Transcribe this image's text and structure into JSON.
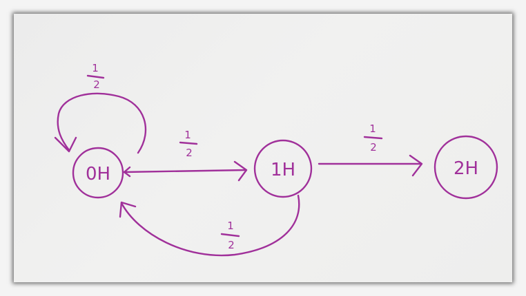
{
  "diagram": {
    "ink_color": "#a0309a",
    "nodes": [
      {
        "id": "0H",
        "label": "0H"
      },
      {
        "id": "1H",
        "label": "1H"
      },
      {
        "id": "2H",
        "label": "2H"
      }
    ],
    "edges": [
      {
        "from": "0H",
        "to": "0H",
        "numerator": "1",
        "denominator": "2"
      },
      {
        "from": "0H",
        "to": "1H",
        "numerator": "1",
        "denominator": "2"
      },
      {
        "from": "1H",
        "to": "2H",
        "numerator": "1",
        "denominator": "2"
      },
      {
        "from": "1H",
        "to": "0H",
        "numerator": "1",
        "denominator": "2"
      }
    ]
  }
}
